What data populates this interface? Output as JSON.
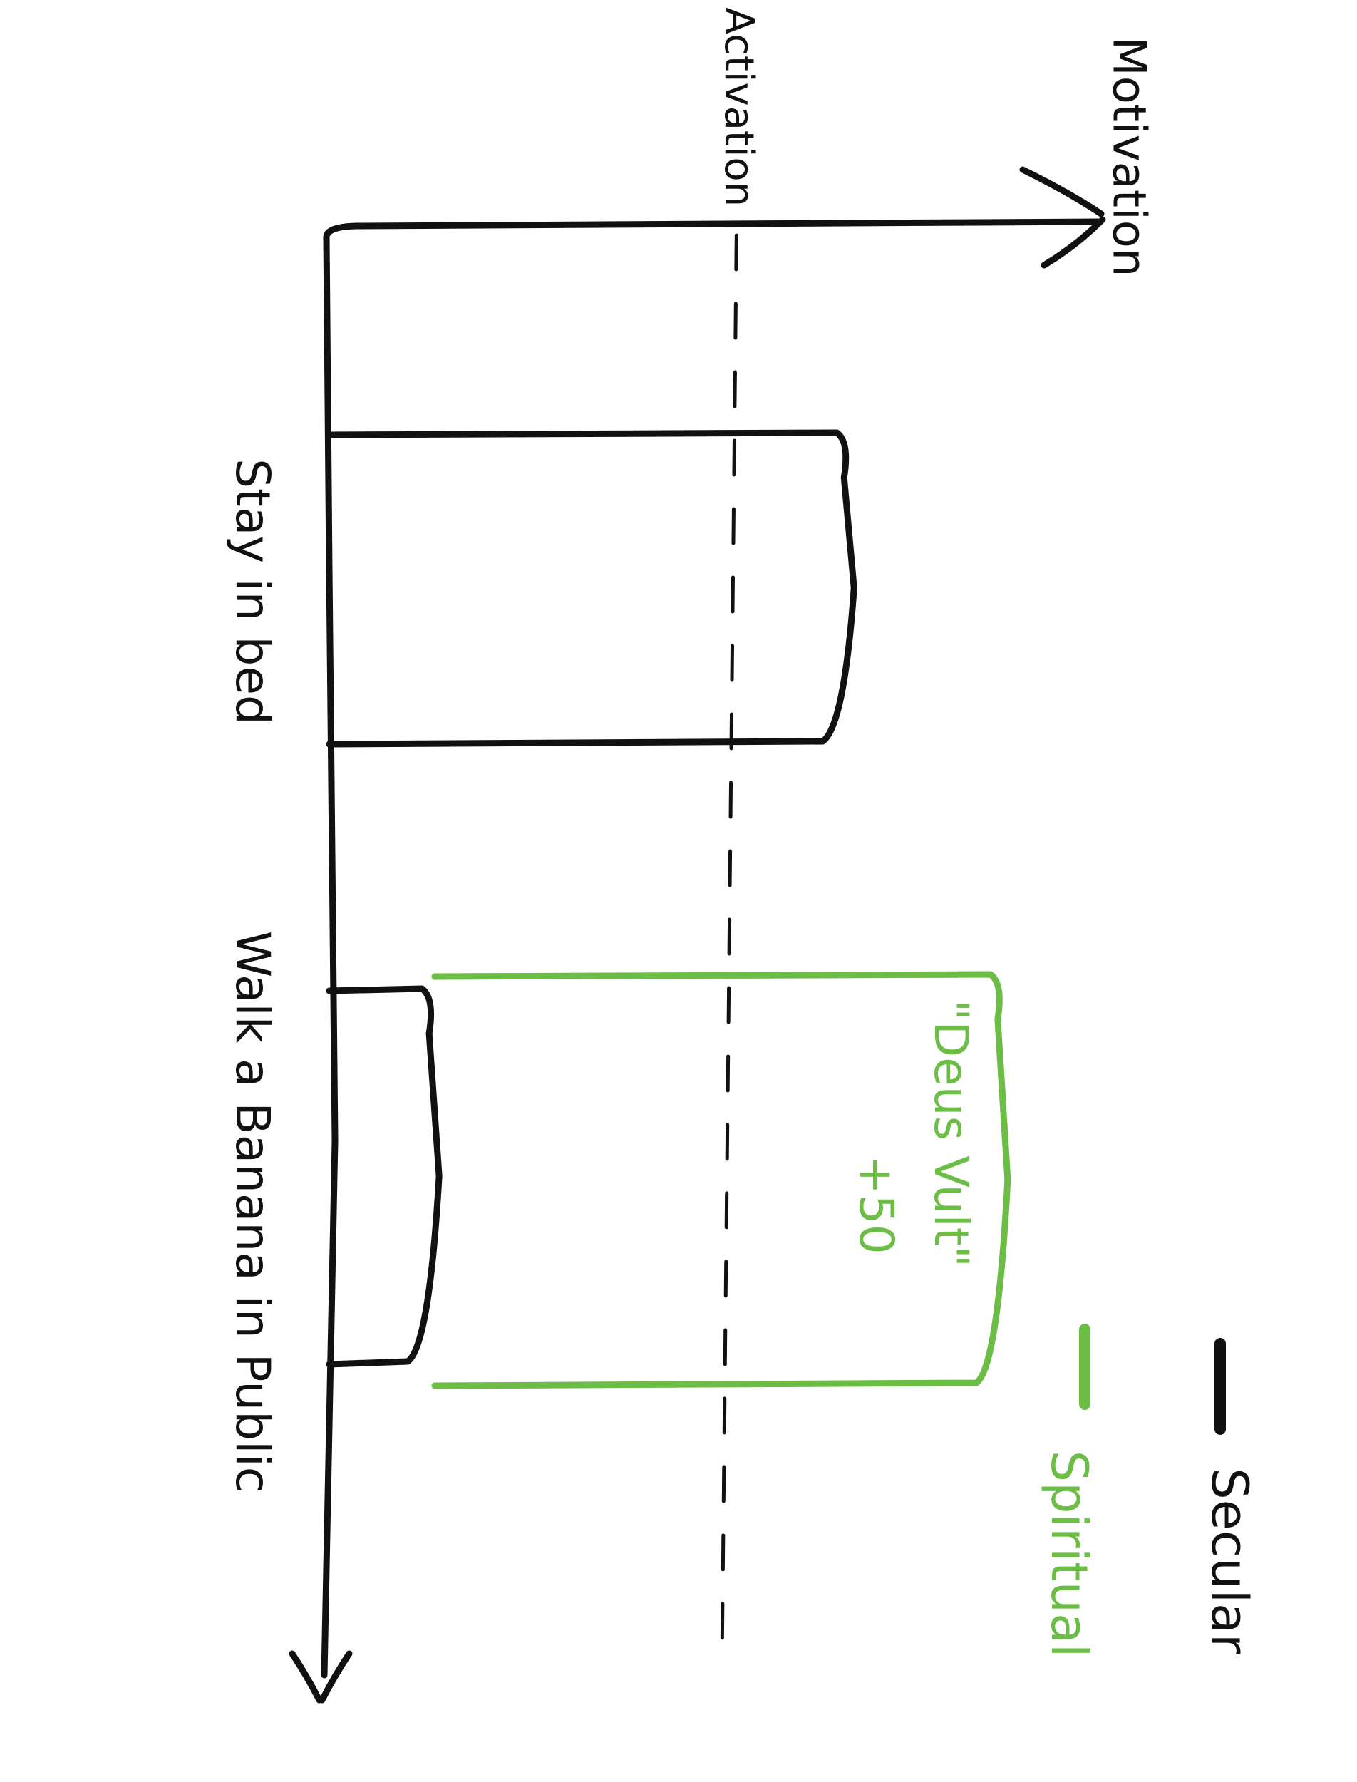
{
  "chart_data": {
    "type": "bar",
    "orientation": "horizontal",
    "title": "",
    "value_axis_label": "Motivation",
    "category_axis_label": "",
    "threshold": {
      "label": "Activation",
      "value": 53
    },
    "categories": [
      "Stay in bed",
      "Walk a Banana in Public"
    ],
    "series": [
      {
        "name": "Secular",
        "color": "#111111",
        "values": [
          67,
          13
        ]
      },
      {
        "name": "Spiritual",
        "color": "#6cbd45",
        "values": [
          null,
          87
        ]
      }
    ],
    "annotations": [
      {
        "text": "\"Deus Vult\"",
        "color": "#6cbd45"
      },
      {
        "text": "+50",
        "color": "#6cbd45"
      }
    ],
    "xlim": [
      0,
      100
    ],
    "grid": false,
    "legend_position": "bottom-right"
  }
}
